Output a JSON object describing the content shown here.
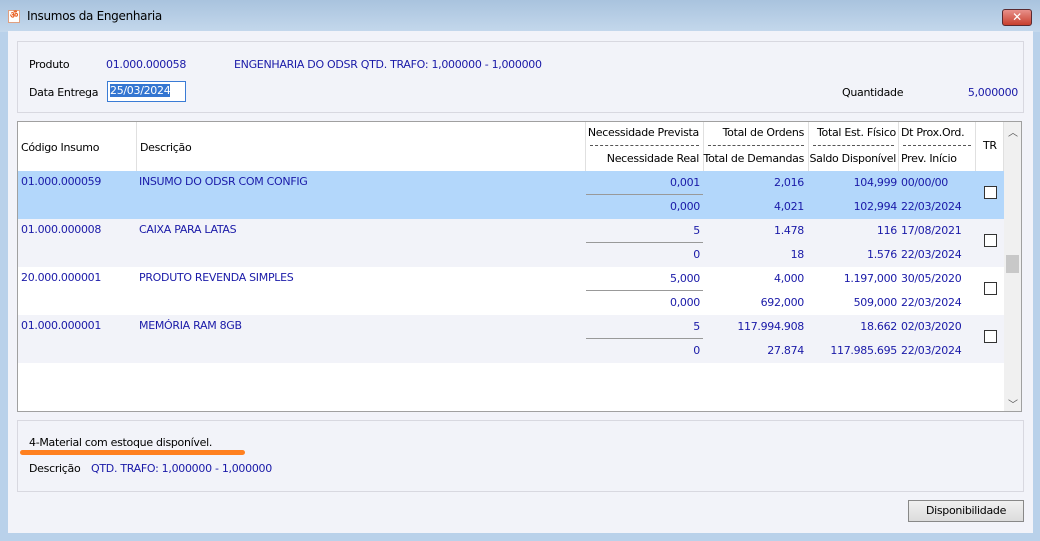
{
  "window": {
    "title": "Insumos da Engenharia",
    "close_icon": "close-icon"
  },
  "header": {
    "produto_label": "Produto",
    "produto_code": "01.000.000058",
    "produto_desc": "ENGENHARIA DO ODSR QTD. TRAFO: 1,000000 - 1,000000",
    "data_label": "Data Entrega",
    "data_value": "25/03/2024",
    "quantidade_label": "Quantidade",
    "quantidade_value": "5,000000"
  },
  "grid": {
    "columns": {
      "codigo": "Código Insumo",
      "descricao": "Descrição",
      "nec_prev": "Necessidade Prevista",
      "nec_real": "Necessidade Real",
      "tot_ordens": "Total de Ordens",
      "tot_dem": "Total de Demandas",
      "tot_est": "Total Est. Físico",
      "saldo": "Saldo Disponível",
      "dt_prox": "Dt Prox.Ord.",
      "prev_inicio": "Prev. Início",
      "tr": "TR"
    },
    "rows": [
      {
        "codigo": "01.000.000059",
        "descricao": "INSUMO DO ODSR COM CONFIG",
        "nec_prev": "0,001",
        "nec_real": "0,000",
        "tot_ordens": "2,016",
        "tot_dem": "4,021",
        "tot_est": "104,999",
        "saldo": "102,994",
        "dt_prox": "00/00/00",
        "prev_inicio": "22/03/2024",
        "tr": false,
        "selected": true
      },
      {
        "codigo": "01.000.000008",
        "descricao": "CAIXA PARA LATAS",
        "nec_prev": "5",
        "nec_real": "0",
        "tot_ordens": "1.478",
        "tot_dem": "18",
        "tot_est": "116",
        "saldo": "1.576",
        "dt_prox": "17/08/2021",
        "prev_inicio": "22/03/2024",
        "tr": false
      },
      {
        "codigo": "20.000.000001",
        "descricao": "PRODUTO REVENDA SIMPLES",
        "nec_prev": "5,000",
        "nec_real": "0,000",
        "tot_ordens": "4,000",
        "tot_dem": "692,000",
        "tot_est": "1.197,000",
        "saldo": "509,000",
        "dt_prox": "30/05/2020",
        "prev_inicio": "22/03/2024",
        "tr": false
      },
      {
        "codigo": "01.000.000001",
        "descricao": "MEMÓRIA RAM 8GB",
        "nec_prev": "5",
        "nec_real": "0",
        "tot_ordens": "117.994.908",
        "tot_dem": "27.874",
        "tot_est": "18.662",
        "saldo": "117.985.695",
        "dt_prox": "02/03/2020",
        "prev_inicio": "22/03/2024",
        "tr": false
      }
    ]
  },
  "footer": {
    "status": "4-Material com estoque disponível.",
    "descricao_label": "Descrição",
    "descricao_value": "QTD. TRAFO: 1,000000 - 1,000000",
    "button": "Disponibilidade"
  },
  "colors": {
    "selected_row": "#b3d7fb",
    "text_blue": "#1a1aa8",
    "highlight": "#ff8020"
  }
}
